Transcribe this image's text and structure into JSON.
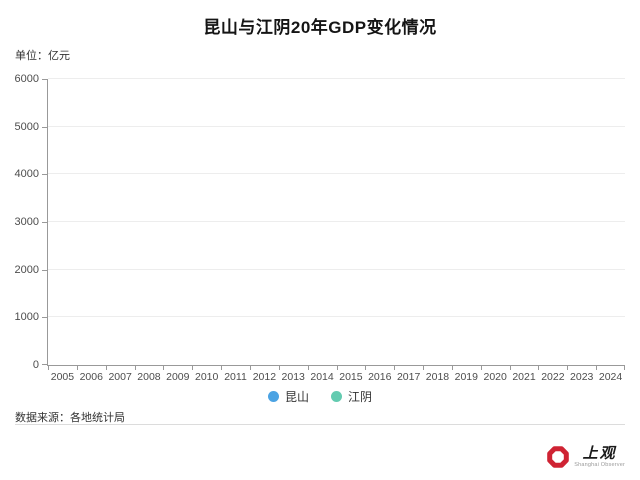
{
  "page": {
    "background": "#ffffff"
  },
  "header": {
    "title": "昆山与江阴20年GDP变化情况",
    "unit_label": "单位：亿元"
  },
  "legend": {
    "items": [
      {
        "label": "昆山",
        "color": "#4ba3e3"
      },
      {
        "label": "江阴",
        "color": "#63cbb0"
      }
    ]
  },
  "footer": {
    "source": "数据来源：各地统计局",
    "logo": {
      "text": "上观",
      "subtitle": "Shanghai Observer",
      "accent_color": "#cf2333"
    }
  },
  "chart_data": {
    "type": "line",
    "title": "昆山与江阴20年GDP变化情况",
    "categories": [
      "2005",
      "2006",
      "2007",
      "2008",
      "2009",
      "2010",
      "2011",
      "2012",
      "2013",
      "2014",
      "2015",
      "2016",
      "2017",
      "2018",
      "2019",
      "2020",
      "2021",
      "2022",
      "2023",
      "2024"
    ],
    "series": [
      {
        "name": "昆山",
        "color": "#4ba3e3",
        "values": []
      },
      {
        "name": "江阴",
        "color": "#63cbb0",
        "values": []
      }
    ],
    "xlabel": "",
    "ylabel": "亿元",
    "ylim": [
      0,
      6000
    ],
    "y_tick_interval": 1000,
    "grid": true,
    "legend_position": "bottom",
    "plot_note": "axes, ticks and gridlines only — no series data points are drawn in the screenshot"
  }
}
